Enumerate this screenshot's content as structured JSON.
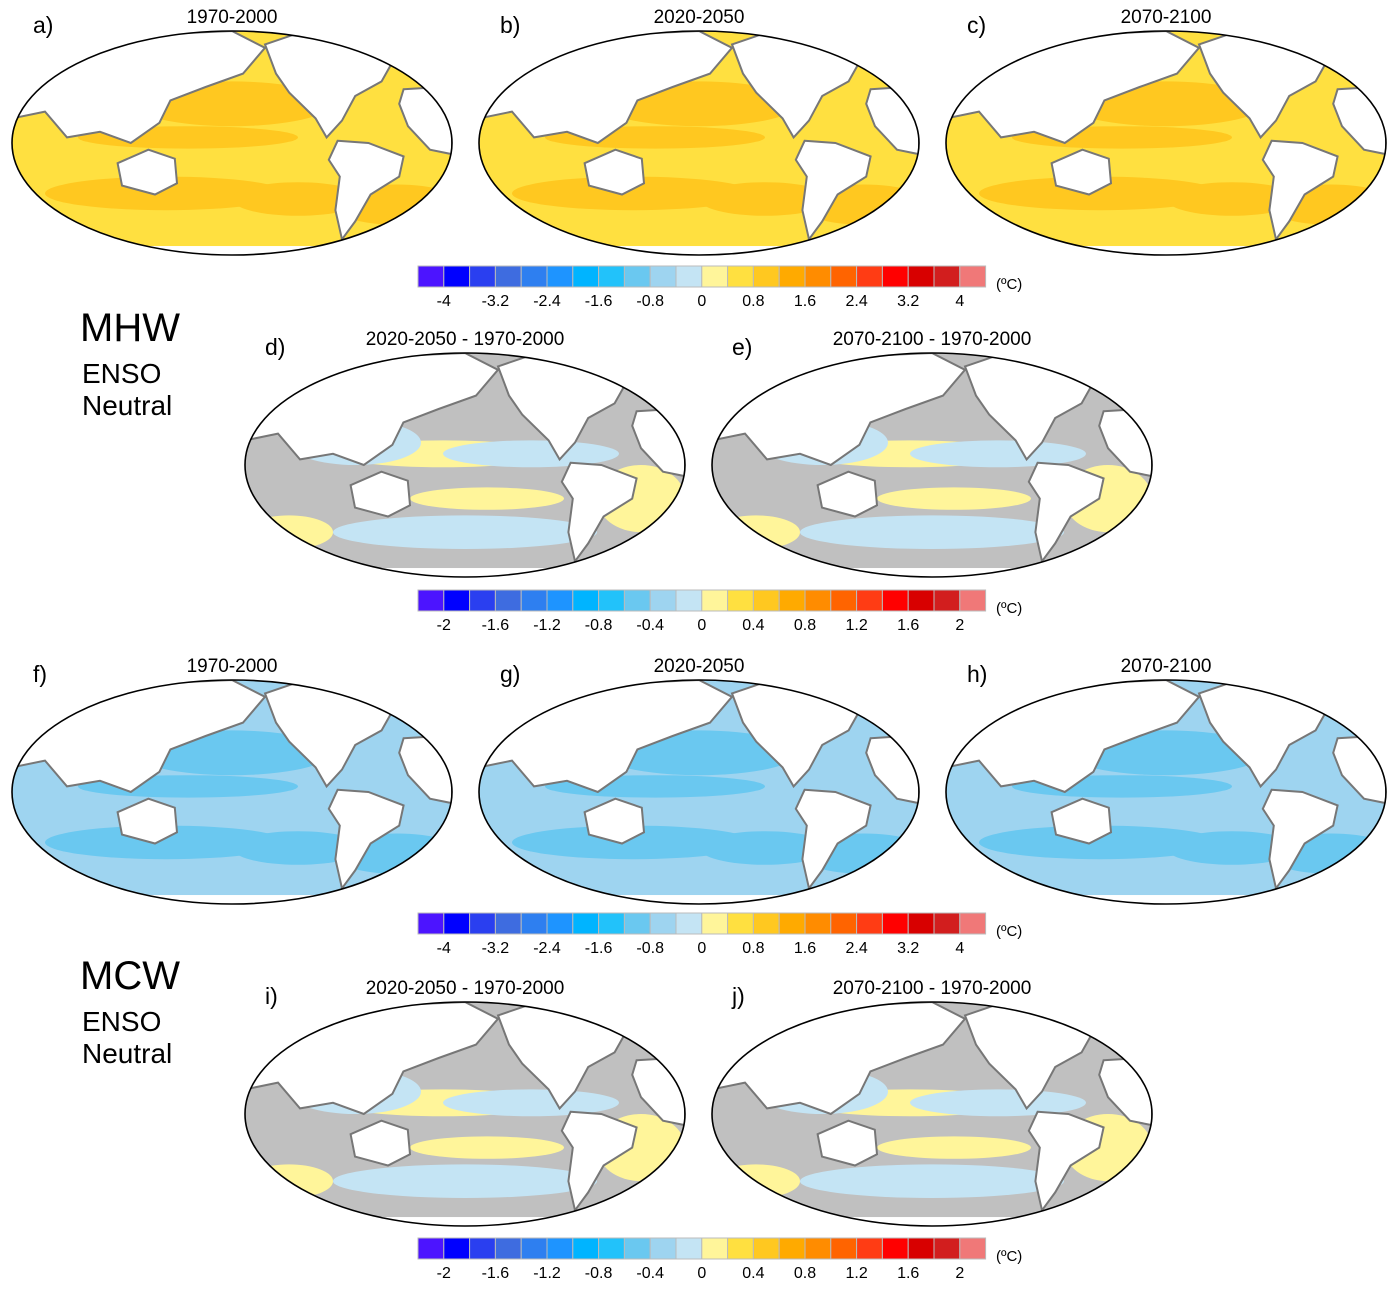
{
  "figure": {
    "panels": [
      {
        "label": "a)",
        "title": "1970-2000",
        "row": "mhw",
        "kind": "abs"
      },
      {
        "label": "b)",
        "title": "2020-2050",
        "row": "mhw",
        "kind": "abs"
      },
      {
        "label": "c)",
        "title": "2070-2100",
        "row": "mhw",
        "kind": "abs"
      },
      {
        "label": "d)",
        "title": "2020-2050 - 1970-2000",
        "row": "mhw",
        "kind": "diff"
      },
      {
        "label": "e)",
        "title": "2070-2100 - 1970-2000",
        "row": "mhw",
        "kind": "diff"
      },
      {
        "label": "f)",
        "title": "1970-2000",
        "row": "mcw",
        "kind": "abs"
      },
      {
        "label": "g)",
        "title": "2020-2050",
        "row": "mcw",
        "kind": "abs"
      },
      {
        "label": "h)",
        "title": "2070-2100",
        "row": "mcw",
        "kind": "abs"
      },
      {
        "label": "i)",
        "title": "2020-2050 - 1970-2000",
        "row": "mcw",
        "kind": "diff"
      },
      {
        "label": "j)",
        "title": "2070-2100 - 1970-2000",
        "row": "mcw",
        "kind": "diff"
      }
    ],
    "groups": [
      {
        "name": "MHW",
        "line1": "ENSO",
        "line2": "Neutral"
      },
      {
        "name": "MCW",
        "line1": "ENSO",
        "line2": "Neutral"
      }
    ],
    "colorbars": [
      {
        "ticks": [
          "-4",
          "-3.2",
          "-2.4",
          "-1.6",
          "-0.8",
          "0",
          "0.8",
          "1.6",
          "2.4",
          "3.2",
          "4"
        ],
        "unit": "(ºC)"
      },
      {
        "ticks": [
          "-2",
          "-1.6",
          "-1.2",
          "-0.8",
          "-0.4",
          "0",
          "0.4",
          "0.8",
          "1.2",
          "1.6",
          "2"
        ],
        "unit": "(ºC)"
      },
      {
        "ticks": [
          "-4",
          "-3.2",
          "-2.4",
          "-1.6",
          "-0.8",
          "0",
          "0.8",
          "1.6",
          "2.4",
          "3.2",
          "4"
        ],
        "unit": "(ºC)"
      },
      {
        "ticks": [
          "-2",
          "-1.6",
          "-1.2",
          "-0.8",
          "-0.4",
          "0",
          "0.4",
          "0.8",
          "1.2",
          "1.6",
          "2"
        ],
        "unit": "(ºC)"
      }
    ],
    "palette": [
      "#4c14ff",
      "#0000ff",
      "#2a3ff0",
      "#3e6ce0",
      "#2e7ff0",
      "#1e94ff",
      "#00b4ff",
      "#22c2fa",
      "#6ac8f0",
      "#9ed4f0",
      "#c4e4f4",
      "#fff59a",
      "#ffe040",
      "#ffc820",
      "#ffaa00",
      "#ff8c00",
      "#ff6400",
      "#ff3c14",
      "#ff0000",
      "#d80000",
      "#d21e1e",
      "#f07878"
    ],
    "insignificant_color": "#c0c0c0"
  }
}
